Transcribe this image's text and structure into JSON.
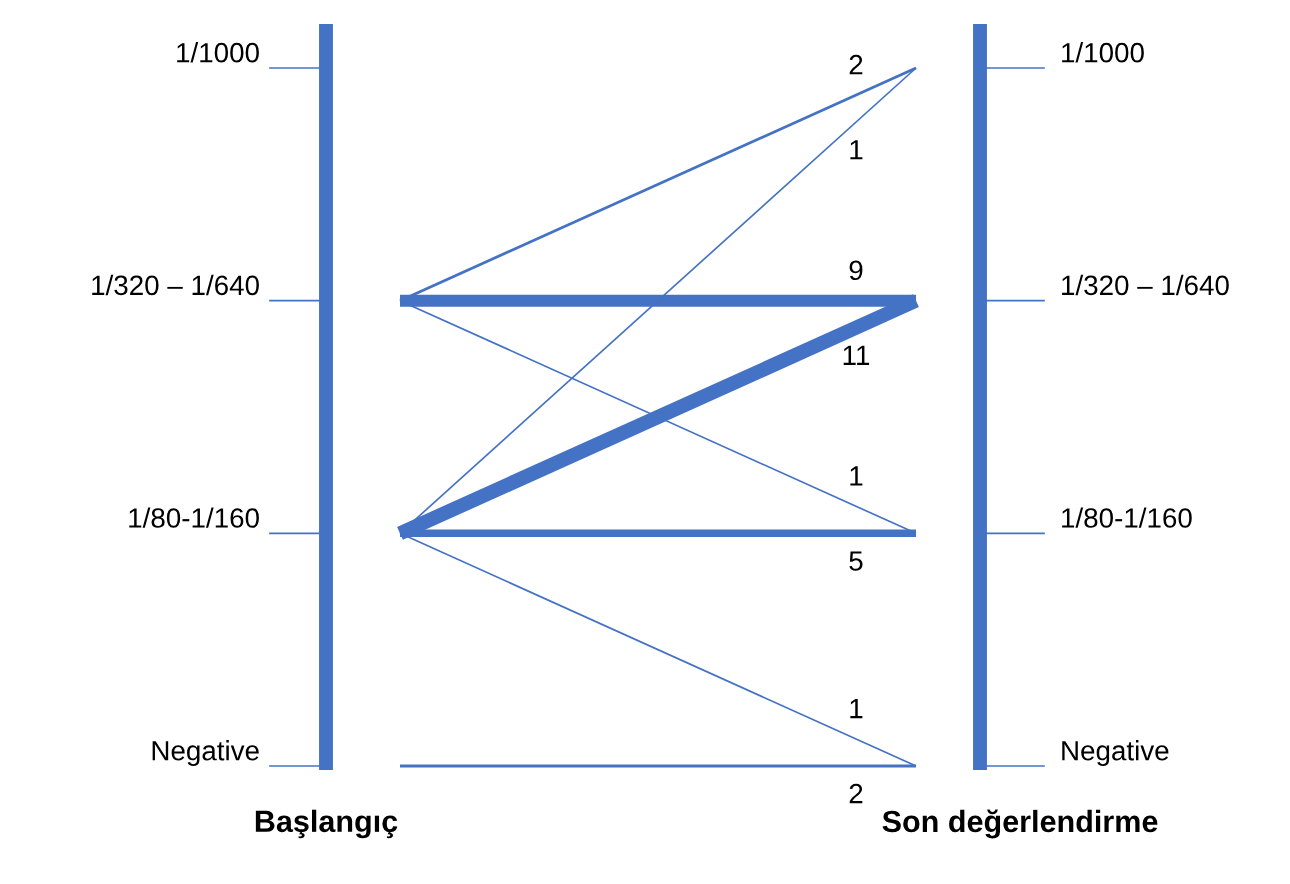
{
  "chart_data": {
    "type": "other",
    "categories": [
      "1/1000",
      "1/320 – 1/640",
      "1/80-1/160",
      "Negative"
    ],
    "annotations": [
      "Başlangıç",
      "Son değerlendirme"
    ],
    "data_labels": true,
    "series": [
      {
        "values": [
          null,
          null,
          null,
          null
        ],
        "color": "#4472c4"
      },
      {
        "values": [
          2,
          9,
          1,
          null
        ],
        "color": "#4472c4"
      },
      {
        "values": [
          1,
          11,
          5,
          1
        ],
        "color": "#4472c4"
      },
      {
        "values": [
          null,
          null,
          null,
          2
        ],
        "color": "#4472c4"
      }
    ]
  }
}
